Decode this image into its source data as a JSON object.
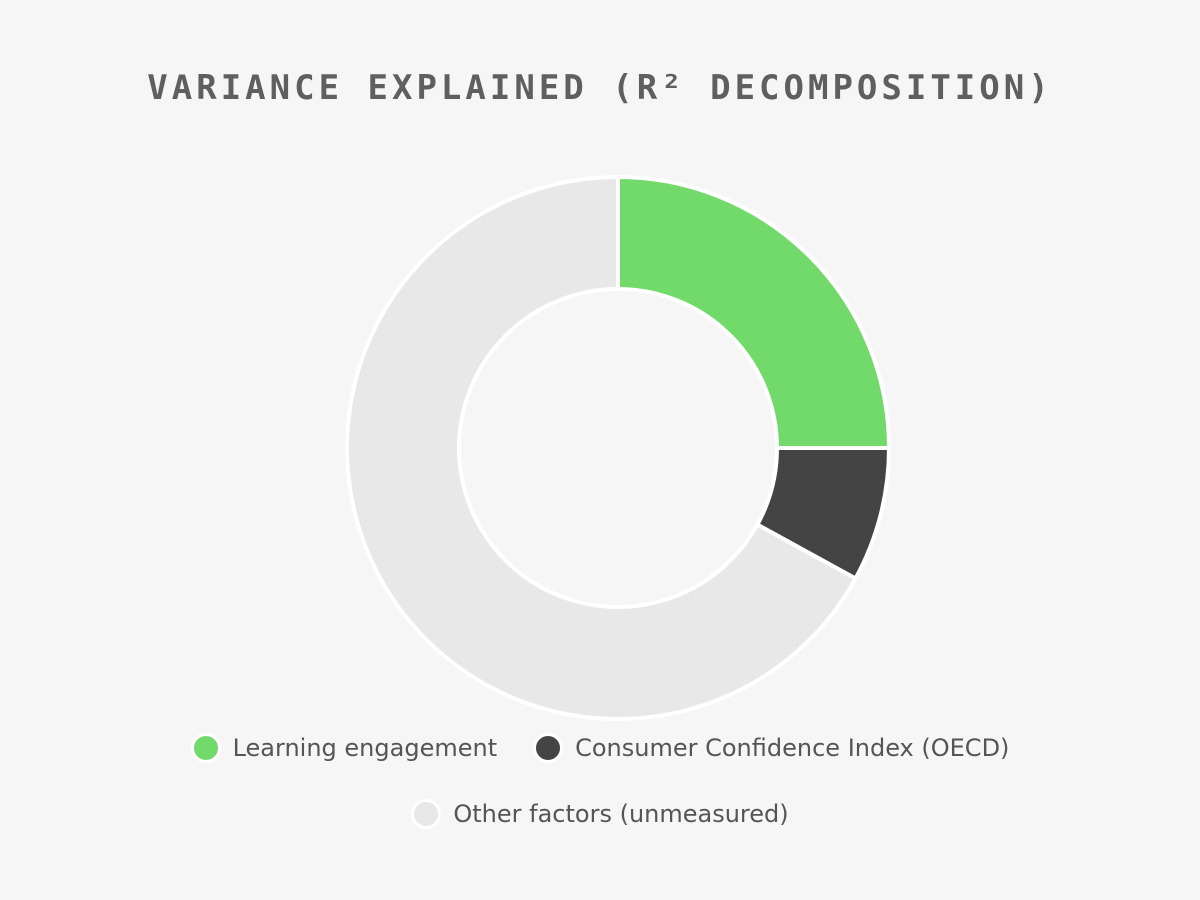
{
  "chart_data": {
    "type": "pie",
    "variant": "donut",
    "title": "VARIANCE EXPLAINED (R² DECOMPOSITION)",
    "slices": [
      {
        "name": "Learning engagement",
        "value": 25,
        "color": "#72d96b"
      },
      {
        "name": "Consumer Confidence Index (OECD)",
        "value": 8,
        "color": "#444444"
      },
      {
        "name": "Other factors (unmeasured)",
        "value": 67,
        "color": "#e8e8e8"
      }
    ],
    "start_angle": "12 o'clock",
    "direction": "clockwise",
    "legend_position": "bottom",
    "data_labels": false
  }
}
